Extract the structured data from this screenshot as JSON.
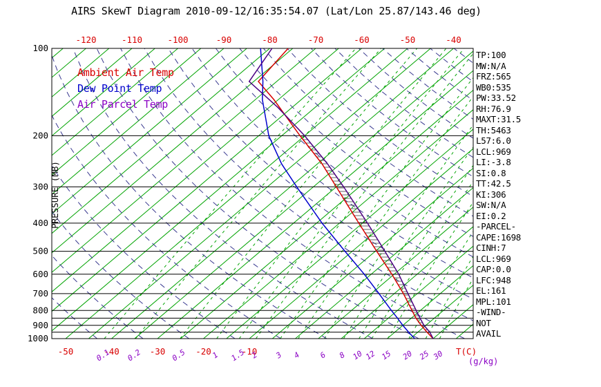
{
  "title": "AIRS SkewT Diagram 2010-09-12/16:35:54.07 (Lat/Lon 25.87/143.46 deg)",
  "colors": {
    "isotherm_green": "#00a300",
    "mixing_green": "#00a300",
    "dry_adiabat": "#38388f",
    "temp_red": "#d80000",
    "dewpoint_blue": "#0000cc",
    "parcel_purple": "#4b0082",
    "label_purple": "#8a00c4",
    "axis_black": "#000000",
    "hatch": "#222222"
  },
  "legend": {
    "items": [
      {
        "label": "Ambient Air Temp",
        "color": "#d80000"
      },
      {
        "label": "Dew Point Temp",
        "color": "#0000cc"
      },
      {
        "label": "Air Parcel Temp",
        "color": "#8a00c4"
      }
    ]
  },
  "y_axis": {
    "label": "PRESSURE (MB)",
    "ticks": [
      100,
      200,
      300,
      400,
      500,
      600,
      700,
      800,
      900,
      1000
    ]
  },
  "x_axis_top": {
    "ticks": [
      -120,
      -110,
      -100,
      -90,
      -80,
      -70,
      -60,
      -50,
      -40
    ]
  },
  "x_axis_bottom": {
    "temp_ticks": [
      -50,
      -40,
      -30,
      -20,
      -10
    ],
    "temp_unit": "T(C)",
    "mixing_ticks": [
      0.1,
      0.2,
      0.5,
      1,
      1.5,
      2,
      3,
      4,
      6,
      8,
      10,
      12,
      15,
      20,
      25,
      30
    ],
    "mixing_unit": "(g/kg)"
  },
  "stats_panel": {
    "lines": [
      "TP:100",
      "MW:N/A",
      "FRZ:565",
      "WB0:535",
      "PW:33.52",
      "RH:76.9",
      "MAXT:31.5",
      "TH:5463",
      "L57:6.0",
      "LCL:969",
      "LI:-3.8",
      "SI:0.8",
      "TT:42.5",
      "KI:306",
      "SW:N/A",
      "EI:0.2",
      "-PARCEL-",
      "CAPE:1698",
      "CINH:7",
      "LCL:969",
      "CAP:0.0",
      "LFC:948",
      "EL:161",
      "MPL:101",
      "-WIND-",
      "NOT",
      "AVAIL"
    ]
  },
  "chart_data": {
    "type": "line",
    "subtype": "skew-t-log-p",
    "title": "AIRS SkewT Diagram 2010-09-12/16:35:54.07 (Lat/Lon 25.87/143.46 deg)",
    "xlabel": "T(C)",
    "ylabel": "PRESSURE (MB)",
    "pressure_range_mb": [
      100,
      1000
    ],
    "grid": "on",
    "legend_position": "upper-left",
    "pressure_grid_lines": [
      100,
      200,
      300,
      400,
      500,
      600,
      700,
      800,
      850,
      900,
      950,
      1000
    ],
    "isotherms_c": {
      "min": -130,
      "max": 45,
      "step": 5
    },
    "dry_adiabats_k": {
      "min": 220,
      "max": 460,
      "step": 10
    },
    "mixing_ratio_g_kg": [
      0.1,
      0.2,
      0.5,
      1,
      1.5,
      2,
      3,
      4,
      6,
      8,
      10,
      12,
      15,
      20,
      25,
      30
    ],
    "series": [
      {
        "name": "Ambient Air Temp",
        "points_p_t": [
          [
            1000,
            30
          ],
          [
            950,
            27
          ],
          [
            900,
            24
          ],
          [
            850,
            21
          ],
          [
            800,
            18.2
          ],
          [
            700,
            12
          ],
          [
            600,
            4.5
          ],
          [
            500,
            -4.7
          ],
          [
            400,
            -15.8
          ],
          [
            300,
            -30
          ],
          [
            250,
            -39
          ],
          [
            200,
            -51
          ],
          [
            150,
            -66
          ],
          [
            130,
            -74
          ],
          [
            100,
            -76
          ]
        ]
      },
      {
        "name": "Dew Point Temp",
        "points_p_t": [
          [
            1000,
            26
          ],
          [
            950,
            23
          ],
          [
            900,
            20
          ],
          [
            850,
            17
          ],
          [
            800,
            13.7
          ],
          [
            700,
            6.7
          ],
          [
            600,
            -1.5
          ],
          [
            500,
            -11.6
          ],
          [
            400,
            -23.8
          ],
          [
            300,
            -38.6
          ],
          [
            250,
            -47.8
          ],
          [
            200,
            -57.8
          ],
          [
            150,
            -68.5
          ],
          [
            130,
            -73
          ],
          [
            100,
            -82
          ]
        ]
      },
      {
        "name": "Air Parcel Temp",
        "points_p_t": [
          [
            1000,
            30
          ],
          [
            950,
            27.6
          ],
          [
            900,
            24.6
          ],
          [
            850,
            21.9
          ],
          [
            800,
            19.1
          ],
          [
            700,
            13
          ],
          [
            600,
            6
          ],
          [
            500,
            -2.9
          ],
          [
            400,
            -13.9
          ],
          [
            300,
            -28.4
          ],
          [
            250,
            -37.8
          ],
          [
            200,
            -50
          ],
          [
            160,
            -63
          ],
          [
            130,
            -76
          ],
          [
            100,
            -79.5
          ]
        ]
      }
    ],
    "cape_hatch": {
      "p_top": 200,
      "p_bottom": 950
    }
  }
}
